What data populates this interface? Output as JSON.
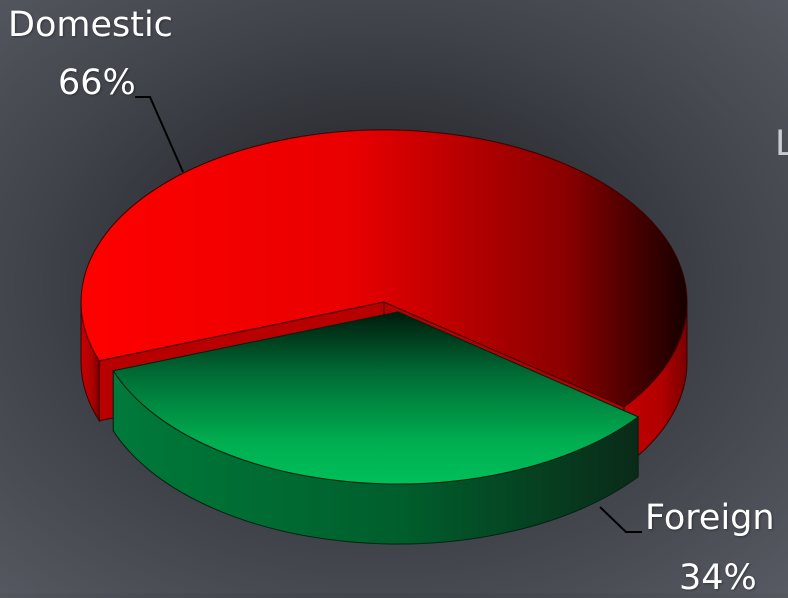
{
  "chart_data": {
    "type": "pie",
    "style": "3d-exploded",
    "slices": [
      {
        "label": "Domestic",
        "value": 66,
        "value_label": "66%",
        "color": "#ff0000"
      },
      {
        "label": "Foreign",
        "value": 34,
        "value_label": "34%",
        "color": "#00a84f"
      }
    ],
    "title": "",
    "legend": "none"
  },
  "edge_text": "L"
}
